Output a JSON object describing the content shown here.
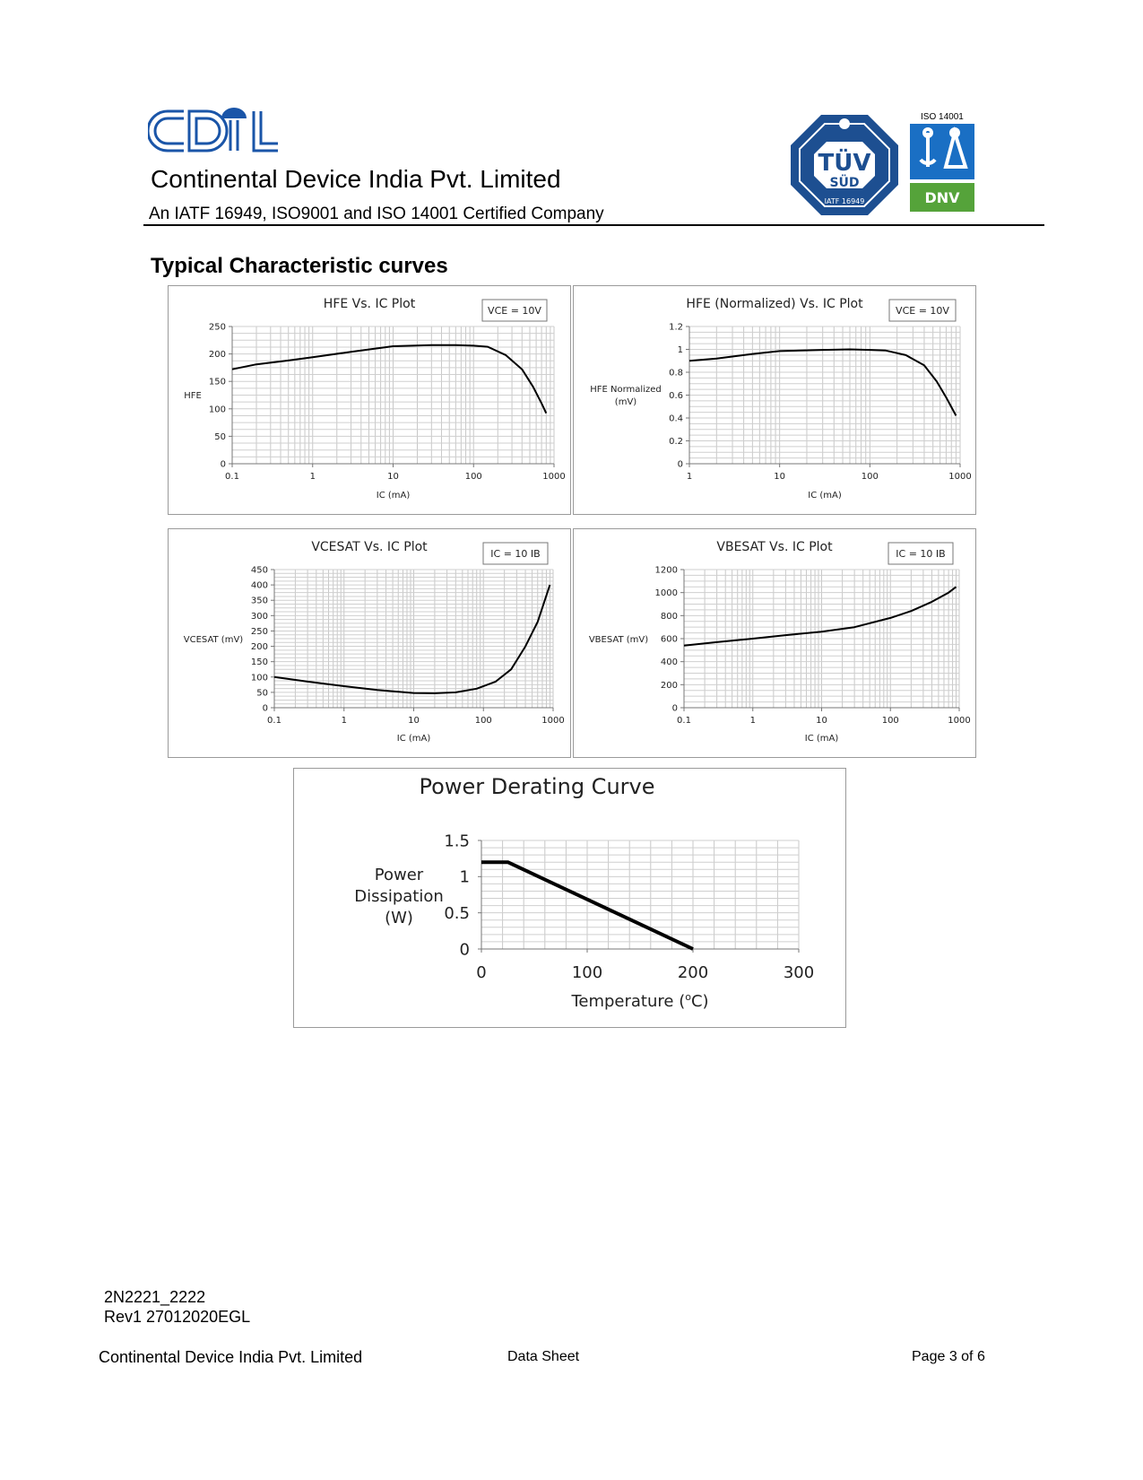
{
  "header": {
    "logo_text": "CDIL",
    "company": "Continental Device India Pvt. Limited",
    "certification": "An IATF 16949, ISO9001 and ISO 14001 Certified Company",
    "tuv_badge": {
      "top": "TÜV",
      "mid": "SÜD",
      "bottom": "IATF 16949"
    },
    "iso_label": "ISO 14001",
    "dnv_label": "DNV",
    "colors": {
      "brand_blue": "#1a55a8",
      "tuv_blue": "#1d4f91",
      "dnv_green": "#55a33a"
    }
  },
  "section_title": "Typical Characteristic curves",
  "chart_data": [
    {
      "type": "line",
      "title": "HFE Vs. IC Plot",
      "condition": "VCE = 10V",
      "xlabel": "IC (mA)",
      "ylabel": "HFE",
      "xscale": "log",
      "xlim": [
        0.1,
        1000
      ],
      "ylim": [
        0,
        250
      ],
      "xticks": [
        "0.1",
        "1",
        "10",
        "100",
        "1000"
      ],
      "yticks": [
        "0",
        "50",
        "100",
        "150",
        "200",
        "250"
      ],
      "series": [
        {
          "x": [
            0.1,
            0.2,
            0.5,
            1,
            3,
            10,
            30,
            60,
            100,
            150,
            250,
            400,
            550,
            700,
            800
          ],
          "y": [
            172,
            181,
            188,
            194,
            204,
            214,
            216,
            216,
            215,
            213,
            198,
            172,
            140,
            110,
            92
          ]
        }
      ]
    },
    {
      "type": "line",
      "title": "HFE (Normalized) Vs. IC Plot",
      "condition": "VCE = 10V",
      "xlabel": "IC (mA)",
      "ylabel": "HFE Normalized (mV)",
      "xscale": "log",
      "xlim": [
        1,
        1000
      ],
      "ylim": [
        0,
        1.2
      ],
      "xticks": [
        "1",
        "10",
        "100",
        "1000"
      ],
      "yticks": [
        "0",
        "0.2",
        "0.4",
        "0.6",
        "0.8",
        "1",
        "1.2"
      ],
      "series": [
        {
          "x": [
            1,
            2,
            5,
            10,
            30,
            60,
            100,
            150,
            250,
            400,
            550,
            700,
            900
          ],
          "y": [
            0.9,
            0.92,
            0.96,
            0.985,
            0.995,
            1.0,
            0.995,
            0.99,
            0.95,
            0.86,
            0.72,
            0.58,
            0.42
          ]
        }
      ]
    },
    {
      "type": "line",
      "title": "VCESAT Vs. IC Plot",
      "condition": "IC = 10 IB",
      "xlabel": "IC (mA)",
      "ylabel": "VCESAT (mV)",
      "xscale": "log",
      "xlim": [
        0.1,
        1000
      ],
      "ylim": [
        0,
        450
      ],
      "xticks": [
        "0.1",
        "1",
        "10",
        "100",
        "1000"
      ],
      "yticks": [
        "0",
        "50",
        "100",
        "150",
        "200",
        "250",
        "300",
        "350",
        "400",
        "450"
      ],
      "series": [
        {
          "x": [
            0.1,
            0.3,
            1,
            3,
            10,
            20,
            40,
            80,
            150,
            250,
            400,
            600,
            900
          ],
          "y": [
            100,
            85,
            70,
            58,
            48,
            47,
            50,
            62,
            85,
            125,
            200,
            280,
            400
          ]
        }
      ]
    },
    {
      "type": "line",
      "title": "VBESAT Vs. IC Plot",
      "condition": "IC = 10 IB",
      "xlabel": "IC (mA)",
      "ylabel": "VBESAT (mV)",
      "xscale": "log",
      "xlim": [
        0.1,
        1000
      ],
      "ylim": [
        0,
        1200
      ],
      "xticks": [
        "0.1",
        "1",
        "10",
        "100",
        "1000"
      ],
      "yticks": [
        "0",
        "200",
        "400",
        "600",
        "800",
        "1000",
        "1200"
      ],
      "series": [
        {
          "x": [
            0.1,
            0.3,
            1,
            3,
            10,
            30,
            100,
            200,
            400,
            700,
            900
          ],
          "y": [
            540,
            570,
            600,
            630,
            660,
            700,
            780,
            840,
            920,
            1000,
            1050
          ]
        }
      ]
    },
    {
      "type": "line",
      "title": "Power Derating Curve",
      "xlabel_parts": {
        "main": "Temperature (",
        "sup": "o",
        "tail": "C)"
      },
      "ylabel_lines": [
        "Power",
        "Dissipation",
        "(W)"
      ],
      "xscale": "linear",
      "xlim": [
        0,
        300
      ],
      "ylim": [
        0,
        1.5
      ],
      "xticks": [
        "0",
        "100",
        "200",
        "300"
      ],
      "yticks": [
        "0",
        "0.5",
        "1",
        "1.5"
      ],
      "series": [
        {
          "x": [
            0,
            25,
            200
          ],
          "y": [
            1.2,
            1.2,
            0
          ]
        }
      ]
    }
  ],
  "footer": {
    "part_number": "2N2221_2222",
    "revision": "Rev1 27012020EGL",
    "company": "Continental Device India Pvt. Limited",
    "doc_type": "Data Sheet",
    "page": "Page 3 of 6"
  }
}
